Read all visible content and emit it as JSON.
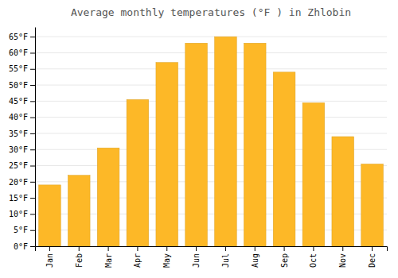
{
  "chart_data": {
    "type": "bar",
    "title": "Average monthly temperatures (°F ) in Zhlobin",
    "categories": [
      "Jan",
      "Feb",
      "Mar",
      "Apr",
      "May",
      "Jun",
      "Jul",
      "Aug",
      "Sep",
      "Oct",
      "Nov",
      "Dec"
    ],
    "values": [
      19,
      22,
      30.5,
      45.5,
      57,
      63,
      65,
      63,
      54,
      44.5,
      34,
      25.5
    ],
    "color": "#FDB827",
    "ylim": [
      0,
      68
    ],
    "yticks": [
      {
        "value": 0,
        "label": "0°F"
      },
      {
        "value": 5,
        "label": "5°F"
      },
      {
        "value": 10,
        "label": "10°F"
      },
      {
        "value": 15,
        "label": "15°F"
      },
      {
        "value": 20,
        "label": "20°F"
      },
      {
        "value": 25,
        "label": "25°F"
      },
      {
        "value": 30,
        "label": "30°F"
      },
      {
        "value": 35,
        "label": "35°F"
      },
      {
        "value": 40,
        "label": "40°F"
      },
      {
        "value": 45,
        "label": "45°F"
      },
      {
        "value": 50,
        "label": "50°F"
      },
      {
        "value": 55,
        "label": "55°F"
      },
      {
        "value": 60,
        "label": "60°F"
      },
      {
        "value": 65,
        "label": "65°F"
      }
    ],
    "grid": true
  }
}
